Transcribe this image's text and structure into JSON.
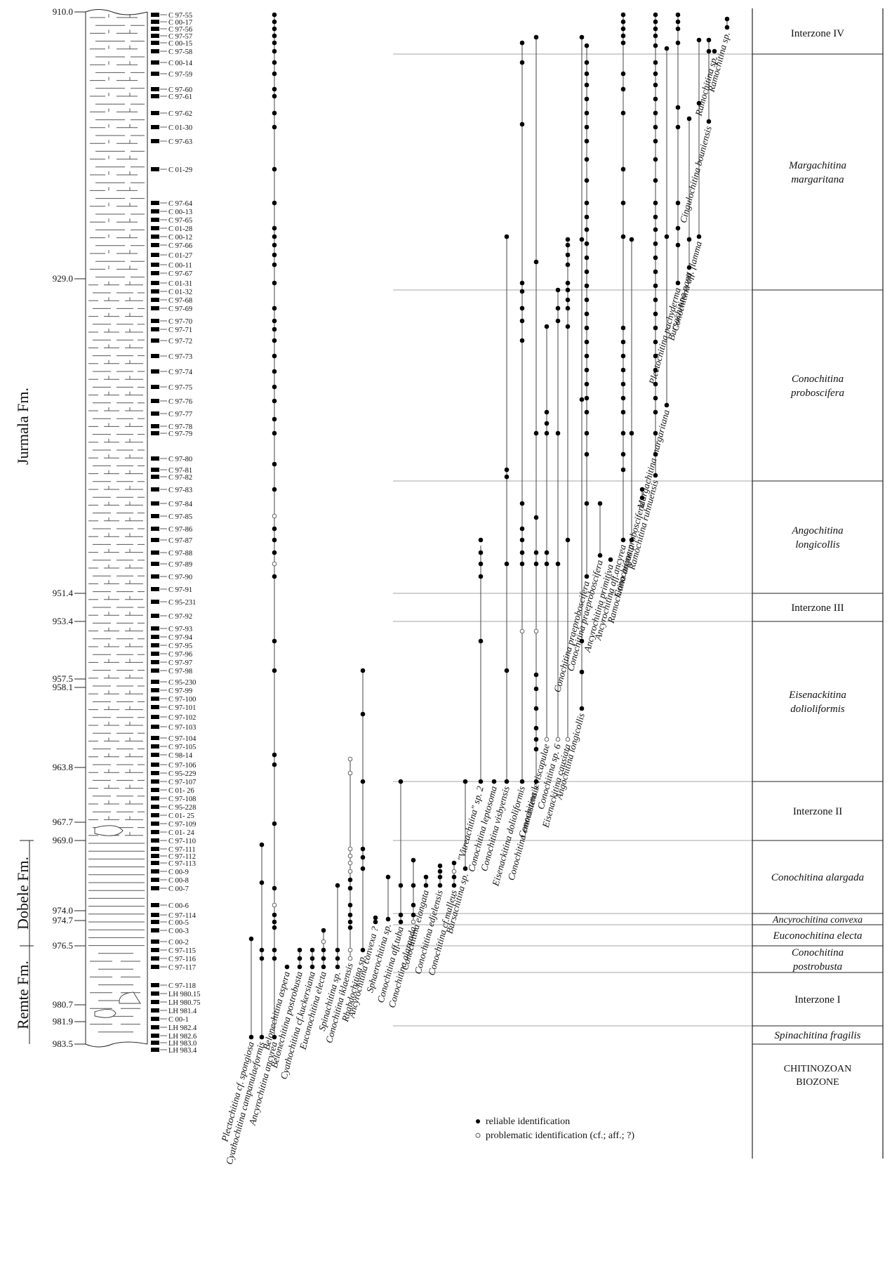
{
  "formations": [
    {
      "name": "Jurmala Fm.",
      "top": 910.0,
      "base": 969.0
    },
    {
      "name": "Dobele Fm.",
      "top": 969.0,
      "base": 976.5
    },
    {
      "name": "Remte Fm.",
      "top": 976.5,
      "base": 983.5
    }
  ],
  "depth_labels": [
    {
      "label": "910.0",
      "depth": 910.0
    },
    {
      "label": "929.0",
      "depth": 929.0
    },
    {
      "label": "951.4",
      "depth": 951.4
    },
    {
      "label": "953.4",
      "depth": 953.4
    },
    {
      "label": "957.5",
      "depth": 957.5
    },
    {
      "label": "958.1",
      "depth": 958.1
    },
    {
      "label": "963.8",
      "depth": 963.8
    },
    {
      "label": "967.7",
      "depth": 967.7
    },
    {
      "label": "969.0",
      "depth": 969.0
    },
    {
      "label": "974.0",
      "depth": 974.0
    },
    {
      "label": "974.7",
      "depth": 974.7
    },
    {
      "label": "976.5",
      "depth": 976.5
    },
    {
      "label": "980.7",
      "depth": 980.7
    },
    {
      "label": "981.9",
      "depth": 981.9
    },
    {
      "label": "983.5",
      "depth": 983.5
    }
  ],
  "shaded_intervals": [
    [
      951.4,
      953.4
    ],
    [
      957.5,
      958.1
    ],
    [
      963.8,
      967.7
    ],
    [
      980.7,
      981.9
    ]
  ],
  "samples": [
    {
      "id": "C 97-55",
      "depth": 910.2
    },
    {
      "id": "C 00-17",
      "depth": 910.7
    },
    {
      "id": "C 97-56",
      "depth": 911.2
    },
    {
      "id": "C 97-57",
      "depth": 911.7
    },
    {
      "id": "C 00-15",
      "depth": 912.2
    },
    {
      "id": "C 97-58",
      "depth": 912.8
    },
    {
      "id": "C 00-14",
      "depth": 913.6
    },
    {
      "id": "C 97-59",
      "depth": 914.4
    },
    {
      "id": "C 97-60",
      "depth": 915.5
    },
    {
      "id": "C 97-61",
      "depth": 916.0
    },
    {
      "id": "C 97-62",
      "depth": 917.2
    },
    {
      "id": "C 01-30",
      "depth": 918.2
    },
    {
      "id": "C 97-63",
      "depth": 919.2
    },
    {
      "id": "C 01-29",
      "depth": 921.2
    },
    {
      "id": "C 97-64",
      "depth": 923.6
    },
    {
      "id": "C 00-13",
      "depth": 924.2
    },
    {
      "id": "C 97-65",
      "depth": 924.8
    },
    {
      "id": "C 01-28",
      "depth": 925.4
    },
    {
      "id": "C 00-12",
      "depth": 926.0
    },
    {
      "id": "C 97-66",
      "depth": 926.6
    },
    {
      "id": "C 01-27",
      "depth": 927.3
    },
    {
      "id": "C 00-11",
      "depth": 928.0
    },
    {
      "id": "C 97-67",
      "depth": 928.6
    },
    {
      "id": "C 01-31",
      "depth": 929.3
    },
    {
      "id": "C 01-32",
      "depth": 929.9
    },
    {
      "id": "C 97-68",
      "depth": 930.5
    },
    {
      "id": "C 97-69",
      "depth": 931.1
    },
    {
      "id": "C 97-70",
      "depth": 932.0
    },
    {
      "id": "C 97-71",
      "depth": 932.6
    },
    {
      "id": "C 97-72",
      "depth": 933.4
    },
    {
      "id": "C 97-73",
      "depth": 934.5
    },
    {
      "id": "C 97-74",
      "depth": 935.6
    },
    {
      "id": "C 97-75",
      "depth": 936.7
    },
    {
      "id": "C 97-76",
      "depth": 937.7
    },
    {
      "id": "C 97-77",
      "depth": 938.6
    },
    {
      "id": "C 97-78",
      "depth": 939.5
    },
    {
      "id": "C 97-79",
      "depth": 940.0
    },
    {
      "id": "C 97-80",
      "depth": 941.8
    },
    {
      "id": "C 97-81",
      "depth": 942.6
    },
    {
      "id": "C 97-82",
      "depth": 943.1
    },
    {
      "id": "C 97-83",
      "depth": 944.0
    },
    {
      "id": "C 97-84",
      "depth": 945.0
    },
    {
      "id": "C 97-85",
      "depth": 945.9
    },
    {
      "id": "C 97-86",
      "depth": 946.8
    },
    {
      "id": "C 97-87",
      "depth": 947.6
    },
    {
      "id": "C 97-88",
      "depth": 948.5
    },
    {
      "id": "C 97-89",
      "depth": 949.3
    },
    {
      "id": "C 97-90",
      "depth": 950.2
    },
    {
      "id": "C 97-91",
      "depth": 951.1
    },
    {
      "id": "C 95-231",
      "depth": 952.0
    },
    {
      "id": "C 97-92",
      "depth": 953.0
    },
    {
      "id": "C 97-93",
      "depth": 953.9
    },
    {
      "id": "C 97-94",
      "depth": 954.5
    },
    {
      "id": "C 97-95",
      "depth": 955.1
    },
    {
      "id": "C 97-96",
      "depth": 955.7
    },
    {
      "id": "C 97-97",
      "depth": 956.3
    },
    {
      "id": "C 97-98",
      "depth": 956.9
    },
    {
      "id": "C 95-230",
      "depth": 957.7
    },
    {
      "id": "C 97-99",
      "depth": 958.3
    },
    {
      "id": "C 97-100",
      "depth": 958.9
    },
    {
      "id": "C 97-101",
      "depth": 959.5
    },
    {
      "id": "C 97-102",
      "depth": 960.2
    },
    {
      "id": "C 97-103",
      "depth": 960.9
    },
    {
      "id": "C 97-104",
      "depth": 961.7
    },
    {
      "id": "C 97-105",
      "depth": 962.3
    },
    {
      "id": "C 98-14",
      "depth": 962.9
    },
    {
      "id": "C 97-106",
      "depth": 963.6
    },
    {
      "id": "C 95-229",
      "depth": 964.2
    },
    {
      "id": "C 97-107",
      "depth": 964.8
    },
    {
      "id": "C 01- 26",
      "depth": 965.4
    },
    {
      "id": "C 97-108",
      "depth": 966.0
    },
    {
      "id": "C 95-228",
      "depth": 966.6
    },
    {
      "id": "C 01- 25",
      "depth": 967.2
    },
    {
      "id": "C 97-109",
      "depth": 967.8
    },
    {
      "id": "C 01- 24",
      "depth": 968.4
    },
    {
      "id": "C 97-110",
      "depth": 969.0
    },
    {
      "id": "C 97-111",
      "depth": 969.6
    },
    {
      "id": "C 97-112",
      "depth": 970.1
    },
    {
      "id": "C 97-113",
      "depth": 970.6
    },
    {
      "id": "C 00-9",
      "depth": 971.2
    },
    {
      "id": "C 00-8",
      "depth": 971.8
    },
    {
      "id": "C 00-7",
      "depth": 972.4
    },
    {
      "id": "C 00-6",
      "depth": 973.6
    },
    {
      "id": "C 97-114",
      "depth": 974.3
    },
    {
      "id": "C 00-5",
      "depth": 974.8
    },
    {
      "id": "C 00-3",
      "depth": 975.4
    },
    {
      "id": "C 00-2",
      "depth": 976.2
    },
    {
      "id": "C 97-115",
      "depth": 976.8
    },
    {
      "id": "C 97-116",
      "depth": 977.4
    },
    {
      "id": "C 97-117",
      "depth": 978.0
    },
    {
      "id": "C 97-118",
      "depth": 979.3
    },
    {
      "id": "LH 980.15",
      "depth": 979.9
    },
    {
      "id": "LH 980.75",
      "depth": 980.5
    },
    {
      "id": "LH 981.4",
      "depth": 981.1
    },
    {
      "id": "C 00-1",
      "depth": 981.7
    },
    {
      "id": "LH 982.4",
      "depth": 982.3
    },
    {
      "id": "LH 982.6",
      "depth": 982.9
    },
    {
      "id": "LH 983.0",
      "depth": 983.4
    },
    {
      "id": "LH 983.4",
      "depth": 983.9
    }
  ],
  "taxa": [
    {
      "name": "Plectochitina cf. spongiosa",
      "base": 983.0,
      "top": 976.0,
      "dots": [
        983.0,
        976.0
      ]
    },
    {
      "name": "Cyathochitina campanulaeformis",
      "base": 983.0,
      "top": 969.3,
      "dots": [
        983.0,
        977.4,
        976.8,
        972.0,
        969.3
      ]
    },
    {
      "name": "Ancyrochitina ancyrea",
      "base": 983.0,
      "top": 910.2,
      "dots": [
        983.0,
        977.4,
        976.8,
        975.2,
        974.8,
        974.3,
        973.6,
        972.4,
        967.8,
        963.6,
        962.9,
        956.9,
        954.8,
        950.2,
        949.3,
        948.5,
        947.6,
        946.8,
        945.9,
        944.0,
        942.2,
        940.0,
        939.0,
        937.7,
        936.7,
        935.6,
        934.5,
        933.4,
        932.6,
        932.0,
        931.1,
        929.3,
        928.0,
        927.3,
        926.6,
        926.0,
        925.4,
        923.6,
        921.2,
        918.2,
        917.2,
        916.0,
        915.5,
        914.4,
        913.6,
        912.8,
        912.2,
        911.7,
        911.2,
        910.7,
        910.2
      ],
      "prob": [
        973.6,
        945.9,
        949.3
      ]
    },
    {
      "name": "Belonechitina aspera",
      "base": 978.0,
      "top": 978.0,
      "dots": [
        978.0
      ]
    },
    {
      "name": "Belonechitina postrobusta",
      "base": 978.0,
      "top": 976.8,
      "dots": [
        978.0,
        977.4,
        976.8
      ]
    },
    {
      "name": "Cyathochitina cf.kuckersiana",
      "base": 978.0,
      "top": 976.8,
      "dots": [
        978.0,
        977.4,
        976.8
      ]
    },
    {
      "name": "Euconochitina electa",
      "base": 978.0,
      "top": 975.4,
      "dots": [
        978.0,
        977.4,
        976.8,
        976.2,
        975.4
      ],
      "prob": [
        976.2
      ]
    },
    {
      "name": "Spinachitina sp.",
      "base": 978.0,
      "top": 972.2,
      "dots": [
        978.0,
        977.4,
        976.8,
        972.2
      ]
    },
    {
      "name": "Conochitina iklaensis",
      "base": 977.4,
      "top": 963.2,
      "dots": [
        977.4,
        976.8,
        975.2,
        974.8,
        974.3,
        973.6,
        972.4,
        971.8,
        971.2,
        970.6,
        970.1,
        969.6,
        964.2,
        963.2
      ],
      "prob": [
        977.4,
        976.8,
        971.2,
        970.6,
        970.1,
        969.6,
        964.2,
        963.2
      ]
    },
    {
      "name": "Rhabdochitina sp.",
      "base": 976.8,
      "top": 956.9,
      "dots": [
        976.8,
        971.0,
        970.2,
        969.6,
        964.8,
        960.0,
        956.9
      ]
    },
    {
      "name": "Ancyrochitina convexa ?",
      "base": 974.8,
      "top": 974.5,
      "dots": [
        974.8,
        974.5
      ]
    },
    {
      "name": "Sphaerochitina sp.",
      "base": 974.6,
      "top": 971.6,
      "dots": [
        974.6,
        971.6
      ]
    },
    {
      "name": "Conochitina aff.tuba",
      "base": 974.8,
      "top": 964.8,
      "dots": [
        974.8,
        974.3,
        972.2,
        964.8
      ]
    },
    {
      "name": "Conochitina alargada",
      "base": 974.8,
      "top": 970.4,
      "dots": [
        974.8,
        974.3,
        973.6,
        972.2,
        970.4
      ],
      "prob": [
        974.8
      ]
    },
    {
      "name": "Conochitina elongata",
      "base": 972.2,
      "top": 971.6,
      "dots": [
        972.2,
        971.6
      ]
    },
    {
      "name": "Conochitina edjelensis",
      "base": 972.2,
      "top": 970.8,
      "dots": [
        972.2,
        971.6,
        971.2,
        970.8
      ]
    },
    {
      "name": "Conochitina cf.malleus",
      "base": 972.2,
      "top": 970.6,
      "dots": [
        972.2,
        971.6,
        971.2,
        970.6
      ],
      "prob": [
        971.2
      ]
    },
    {
      "name": "Bursachitina sp.",
      "base": 971.0,
      "top": 964.8,
      "dots": [
        971.0,
        964.8
      ]
    },
    {
      "name": "\"Vitreachitina\" sp. 2",
      "base": 964.8,
      "top": 948.0,
      "dots": [
        964.8,
        954.8,
        950.2,
        949.3,
        948.5,
        947.6
      ]
    },
    {
      "name": "Conochitina leptosoma",
      "base": 964.8,
      "top": 964.8,
      "dots": [
        964.8
      ]
    },
    {
      "name": "Conochitina visbyensis",
      "base": 964.8,
      "top": 926.0,
      "dots": [
        964.8,
        956.9,
        949.3,
        943.1,
        942.6,
        926.0
      ]
    },
    {
      "name": "Eisenackitina dolioliformis",
      "base": 964.8,
      "top": 912.2,
      "dots": [
        964.8,
        954.1,
        949.3,
        948.5,
        947.6,
        946.8,
        945.0,
        933.4,
        932.0,
        931.1,
        929.9,
        929.3,
        918.0,
        913.6,
        912.2
      ],
      "prob": [
        954.1
      ]
    },
    {
      "name": "Conochitina emmastensis",
      "base": 964.8,
      "top": 911.8,
      "dots": [
        964.8,
        962.5,
        961.8,
        961.0,
        959.6,
        958.2,
        957.2,
        954.1,
        949.3,
        948.5,
        946.0,
        940.0,
        927.8,
        911.8
      ],
      "prob": [
        954.1
      ]
    },
    {
      "name": "Conochitina leviscapulae",
      "base": 961.8,
      "top": 932.4,
      "dots": [
        961.8,
        949.3,
        948.5,
        940.0,
        939.3,
        938.5,
        932.4
      ],
      "prob": [
        961.8
      ]
    },
    {
      "name": "Conochitina sp. 6",
      "base": 961.8,
      "top": 929.8,
      "dots": [
        961.8,
        949.3,
        940.0,
        932.0,
        931.1,
        929.8
      ],
      "prob": [
        961.8
      ]
    },
    {
      "name": "Eisenackitina causiata",
      "base": 961.8,
      "top": 926.2,
      "dots": [
        961.8,
        947.6,
        932.4,
        931.1,
        930.5,
        929.8,
        929.3,
        928.0,
        927.3,
        926.6,
        926.2
      ],
      "prob": [
        961.8
      ]
    },
    {
      "name": "Angochitina longicollis",
      "base": 959.6,
      "top": 911.8,
      "dots": [
        959.6,
        957.0,
        954.8,
        937.6,
        926.2,
        911.8
      ]
    },
    {
      "name": "Conochitina praeproboscifera",
      "base": 950.2,
      "top": 912.4,
      "dots": [
        950.2,
        945.0,
        941.5,
        940.0,
        938.5,
        937.5,
        936.5,
        935.5,
        934.5,
        933.5,
        932.5,
        931.5,
        930.5,
        929.5,
        928.5,
        927.5,
        926.5,
        925.5,
        924.6,
        923.6,
        922.0,
        920.5,
        919.2,
        918.2,
        917.2,
        916.2,
        915.2,
        914.4,
        913.6,
        912.4
      ]
    },
    {
      "name": "Conochitina praeproboscifera",
      "base": 948.7,
      "top": 945.0,
      "dots": [
        948.7,
        945.0
      ]
    },
    {
      "name": "Ancyrochitina primitiva",
      "base": 949.0,
      "top": 949.0,
      "dots": [
        949.0
      ]
    },
    {
      "name": "Ancyrochitina aff.ancyrea",
      "base": 947.6,
      "top": 910.2,
      "dots": [
        947.6,
        942.6,
        941.5,
        940.0,
        938.5,
        937.5,
        936.5,
        935.5,
        934.5,
        933.5,
        932.5,
        926.0,
        923.6,
        921.2,
        917.2,
        915.5,
        914.4,
        912.2,
        911.7,
        911.2,
        910.7,
        910.2
      ]
    },
    {
      "name": "Ramochitina angusta",
      "base": 947.6,
      "top": 926.2,
      "dots": [
        947.6,
        940.0,
        926.2
      ]
    },
    {
      "name": "Conochitina proboscifera",
      "base": 944.6,
      "top": 944.0,
      "dots": [
        944.6,
        944.0
      ]
    },
    {
      "name": "Ramochitina ruhnuensis",
      "base": 943.0,
      "top": 910.2,
      "dots": [
        943.0,
        941.5,
        940.0,
        938.5,
        937.5,
        936.5,
        935.5,
        934.5,
        933.5,
        932.5,
        931.5,
        930.5,
        929.5,
        928.5,
        927.5,
        926.5,
        925.5,
        924.6,
        923.6,
        922.0,
        920.5,
        919.2,
        918.2,
        917.2,
        916.2,
        915.2,
        914.4,
        913.6,
        912.4,
        911.7,
        911.2,
        910.7,
        910.2
      ]
    },
    {
      "name": "Margachitina margaritana",
      "base": 938.0,
      "top": 912.6,
      "dots": [
        938.0,
        926.0,
        912.6
      ]
    },
    {
      "name": "Plectochitina pachyderma",
      "base": 929.3,
      "top": 910.2,
      "dots": [
        929.3,
        926.6,
        925.4,
        923.6,
        918.2,
        916.8,
        912.2,
        911.2,
        910.7,
        910.2
      ]
    },
    {
      "name": "Bursachitina nana",
      "base": 928.2,
      "top": 917.6,
      "dots": [
        928.2,
        926.2,
        917.6
      ]
    },
    {
      "name": "Conochitina aff. flamma",
      "base": 926.0,
      "top": 912.0,
      "dots": [
        926.0,
        916.5,
        912.0
      ]
    },
    {
      "name": "Cingulochitina bouniensis",
      "base": 917.8,
      "top": 912.0,
      "dots": [
        917.8,
        912.8,
        912.0
      ]
    },
    {
      "name": "Ramochitina sp.",
      "base": 912.8,
      "top": 912.8,
      "dots": [
        912.8
      ]
    },
    {
      "name": "Ramochitina sp.",
      "base": 911.1,
      "top": 910.5,
      "dots": [
        911.1,
        910.5
      ]
    }
  ],
  "zones": [
    {
      "name": "Interzone IV",
      "top": 910.0,
      "base": 913.0,
      "italic": false
    },
    {
      "name_lines": [
        "Margachitina",
        "margaritana"
      ],
      "top": 913.0,
      "base": 929.8,
      "italic": true
    },
    {
      "name_lines": [
        "Conochitina",
        "proboscifera"
      ],
      "top": 929.8,
      "base": 943.4,
      "italic": true
    },
    {
      "name_lines": [
        "Angochitina",
        "longicollis"
      ],
      "top": 943.4,
      "base": 951.4,
      "italic": true
    },
    {
      "name": "Interzone III",
      "top": 951.4,
      "base": 953.4,
      "italic": false
    },
    {
      "name_lines": [
        "Eisenackitina",
        "dolioliformis"
      ],
      "top": 953.4,
      "base": 964.8,
      "italic": true
    },
    {
      "name": "Interzone II",
      "top": 964.8,
      "base": 969.0,
      "italic": false
    },
    {
      "name": "Conochitina alargada",
      "top": 969.0,
      "base": 974.2,
      "italic": true
    },
    {
      "name": "Ancyrochitina convexa",
      "top": 974.2,
      "base": 975.0,
      "italic": true
    },
    {
      "name": "Euconochitina electa",
      "top": 975.0,
      "base": 976.5,
      "italic": true
    },
    {
      "name_lines": [
        "Conochitina",
        "postrobusta"
      ],
      "top": 976.5,
      "base": 978.4,
      "italic": true
    },
    {
      "name": "Interzone I",
      "top": 978.4,
      "base": 982.2,
      "italic": false
    },
    {
      "name": "Spinachitina fragilis",
      "top": 982.2,
      "base": 983.5,
      "italic": true
    }
  ],
  "biozone_title": [
    "CHITINOZOAN",
    "BIOZONE"
  ],
  "legend": {
    "reliable": "reliable identification",
    "problematic": "problematic  identification (cf.; aff.; ?)"
  }
}
